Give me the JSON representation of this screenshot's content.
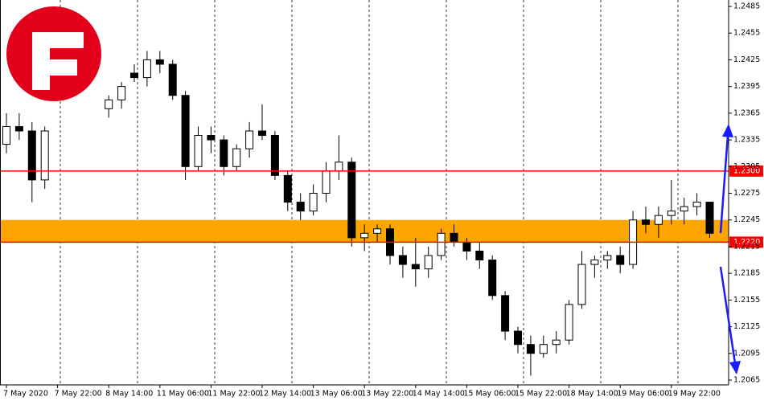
{
  "chart_data": {
    "type": "candlestick",
    "categories": [
      "7 May 2020",
      null,
      null,
      null,
      "7 May 22:00",
      null,
      null,
      null,
      "8 May 14:00",
      null,
      null,
      null,
      "11 May 06:00",
      null,
      null,
      null,
      "11 May 22:00",
      null,
      null,
      null,
      "12 May 14:00",
      null,
      null,
      null,
      "13 May 06:00",
      null,
      null,
      null,
      "13 May 22:00",
      null,
      null,
      null,
      "14 May 14:00",
      null,
      null,
      null,
      "15 May 06:00",
      null,
      null,
      null,
      "15 May 22:00",
      null,
      null,
      null,
      "18 May 14:00",
      null,
      null,
      null,
      "19 May 06:00",
      null,
      null,
      null,
      "19 May 22:00",
      null,
      null,
      null
    ],
    "open": [
      1.233,
      1.235,
      1.2345,
      1.229,
      null,
      null,
      null,
      null,
      1.237,
      1.238,
      1.241,
      1.2405,
      1.2425,
      1.242,
      1.2385,
      1.2305,
      1.234,
      1.2335,
      1.2305,
      1.2325,
      1.2345,
      1.234,
      1.2295,
      1.2265,
      1.2255,
      1.2275,
      1.23,
      1.231,
      1.2225,
      1.223,
      1.2235,
      1.2205,
      1.2195,
      1.219,
      1.2205,
      1.223,
      1.222,
      1.221,
      1.22,
      1.216,
      1.212,
      1.2105,
      1.2095,
      1.2105,
      1.211,
      1.215,
      1.2195,
      1.22,
      1.2205,
      1.2195,
      1.2245,
      1.224,
      1.225,
      1.2255,
      1.226,
      1.2265
    ],
    "high": [
      1.2365,
      1.2365,
      1.2355,
      1.235,
      null,
      null,
      null,
      null,
      1.2385,
      1.24,
      1.242,
      1.2435,
      1.2435,
      1.2425,
      1.239,
      1.235,
      1.235,
      1.234,
      1.233,
      1.2355,
      1.2375,
      1.2345,
      1.23,
      1.2275,
      1.2285,
      1.231,
      1.234,
      1.2315,
      1.224,
      1.224,
      1.224,
      1.2215,
      1.2225,
      1.2215,
      1.2235,
      1.224,
      1.2225,
      1.222,
      1.2205,
      1.2165,
      1.2125,
      1.2115,
      1.2115,
      1.212,
      1.2155,
      1.221,
      1.2205,
      1.221,
      1.2215,
      1.2255,
      1.226,
      1.226,
      1.229,
      1.227,
      1.2275,
      1.2265
    ],
    "low": [
      1.232,
      1.2335,
      1.2265,
      1.228,
      null,
      null,
      null,
      null,
      1.236,
      1.237,
      1.24,
      1.2395,
      1.241,
      1.238,
      1.229,
      1.23,
      1.232,
      1.2295,
      1.23,
      1.2315,
      1.2335,
      1.229,
      1.2255,
      1.2245,
      1.225,
      1.2265,
      1.229,
      1.2215,
      1.221,
      1.222,
      1.2195,
      1.218,
      1.217,
      1.218,
      1.22,
      1.2215,
      1.22,
      1.219,
      1.2155,
      1.211,
      1.2095,
      1.207,
      1.209,
      1.2095,
      1.2105,
      1.2145,
      1.218,
      1.219,
      1.2185,
      1.219,
      1.223,
      1.2225,
      1.224,
      1.224,
      1.225,
      1.2225
    ],
    "close": [
      1.235,
      1.2345,
      1.229,
      1.2345,
      null,
      null,
      null,
      null,
      1.238,
      1.2395,
      1.2405,
      1.2425,
      1.242,
      1.2385,
      1.2305,
      1.234,
      1.2335,
      1.2305,
      1.2325,
      1.2345,
      1.234,
      1.2295,
      1.2265,
      1.2255,
      1.2275,
      1.23,
      1.231,
      1.2225,
      1.223,
      1.2235,
      1.2205,
      1.2195,
      1.219,
      1.2205,
      1.223,
      1.222,
      1.221,
      1.22,
      1.216,
      1.212,
      1.2105,
      1.2095,
      1.2105,
      1.211,
      1.215,
      1.2195,
      1.22,
      1.2205,
      1.2195,
      1.2245,
      1.224,
      1.225,
      1.2255,
      1.226,
      1.2265,
      1.223
    ],
    "up_color": "#ffffff",
    "down_color": "#000000",
    "ylim": [
      1.2065,
      1.2485
    ],
    "yticks": [
      1.2485,
      1.2455,
      1.2425,
      1.2395,
      1.2365,
      1.2335,
      1.2305,
      1.2275,
      1.2245,
      1.2215,
      1.2185,
      1.2155,
      1.2125,
      1.2095,
      1.2065
    ],
    "levels": [
      {
        "value": 1.23,
        "label": "1.2300",
        "color": "#ff0000"
      },
      {
        "value": 1.222,
        "label": "1.2220",
        "color": "#ff0000"
      }
    ],
    "zone": {
      "range": [
        1.222,
        1.2245
      ],
      "color": "#ffa500"
    },
    "grid": true
  }
}
